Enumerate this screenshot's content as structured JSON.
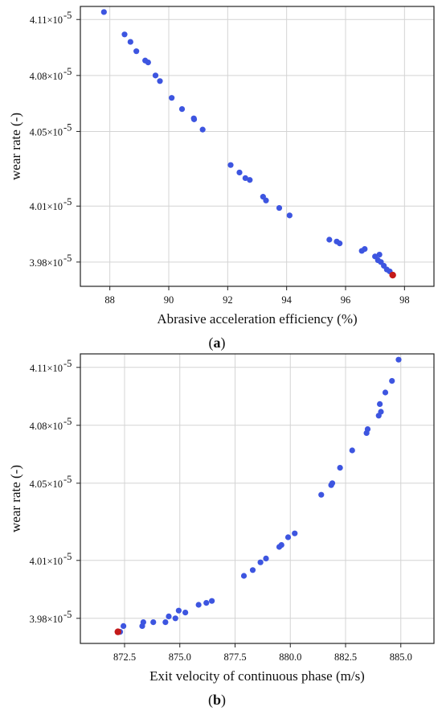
{
  "chart_data": [
    {
      "type": "scatter",
      "panel_label": "a",
      "xlabel": "Abrasive acceleration efficiency (%)",
      "ylabel": "wear rate (-)",
      "xlim": [
        87.0,
        99.0
      ],
      "ylim": [
        3.967e-05,
        4.117e-05
      ],
      "xticks": [
        88,
        90,
        92,
        94,
        96,
        98
      ],
      "xtick_labels": [
        "88",
        "90",
        "92",
        "94",
        "96",
        "98"
      ],
      "yticks": [
        3.98e-05,
        4.01e-05,
        4.05e-05,
        4.08e-05,
        4.11e-05
      ],
      "ytick_mantissas": [
        "3.98×10",
        "4.01×10",
        "4.05×10",
        "4.08×10",
        "4.11×10"
      ],
      "ytick_exponent": "-5",
      "grid": true,
      "point_color": "#3d55e0",
      "highlight_color": "#c41a1a",
      "points": [
        [
          87.8,
          4.114e-05
        ],
        [
          88.5,
          4.102e-05
        ],
        [
          88.7,
          4.098e-05
        ],
        [
          88.9,
          4.093e-05
        ],
        [
          89.2,
          4.088e-05
        ],
        [
          89.3,
          4.087e-05
        ],
        [
          89.55,
          4.08e-05
        ],
        [
          89.7,
          4.077e-05
        ],
        [
          90.1,
          4.068e-05
        ],
        [
          90.45,
          4.062e-05
        ],
        [
          90.85,
          4.057e-05
        ],
        [
          90.86,
          4.0565e-05
        ],
        [
          91.15,
          4.051e-05
        ],
        [
          92.1,
          4.032e-05
        ],
        [
          92.4,
          4.028e-05
        ],
        [
          92.6,
          4.025e-05
        ],
        [
          92.75,
          4.024e-05
        ],
        [
          93.2,
          4.015e-05
        ],
        [
          93.3,
          4.013e-05
        ],
        [
          93.75,
          4.009e-05
        ],
        [
          94.1,
          4.005e-05
        ],
        [
          95.45,
          3.992e-05
        ],
        [
          95.7,
          3.991e-05
        ],
        [
          95.8,
          3.99e-05
        ],
        [
          96.55,
          3.986e-05
        ],
        [
          96.65,
          3.987e-05
        ],
        [
          97.0,
          3.983e-05
        ],
        [
          97.15,
          3.984e-05
        ],
        [
          97.1,
          3.981e-05
        ],
        [
          97.2,
          3.98e-05
        ],
        [
          97.3,
          3.978e-05
        ],
        [
          97.4,
          3.976e-05
        ],
        [
          97.5,
          3.975e-05
        ]
      ],
      "highlight_point": [
        97.6,
        3.973e-05
      ]
    },
    {
      "type": "scatter",
      "panel_label": "b",
      "xlabel": "Exit velocity of continuous phase (m/s)",
      "ylabel": "wear rate (-)",
      "xlim": [
        870.5,
        886.5
      ],
      "ylim": [
        3.967e-05,
        4.117e-05
      ],
      "xticks": [
        872.5,
        875.0,
        877.5,
        880.0,
        882.5,
        885.0
      ],
      "xtick_labels": [
        "872.5",
        "875.0",
        "877.5",
        "880.0",
        "882.5",
        "885.0"
      ],
      "yticks": [
        3.98e-05,
        4.01e-05,
        4.05e-05,
        4.08e-05,
        4.11e-05
      ],
      "ytick_mantissas": [
        "3.98×10",
        "4.01×10",
        "4.05×10",
        "4.08×10",
        "4.11×10"
      ],
      "ytick_exponent": "-5",
      "grid": true,
      "point_color": "#3d55e0",
      "highlight_color": "#c41a1a",
      "points": [
        [
          872.3,
          3.973e-05
        ],
        [
          872.45,
          3.976e-05
        ],
        [
          873.3,
          3.976e-05
        ],
        [
          873.35,
          3.978e-05
        ],
        [
          873.8,
          3.978e-05
        ],
        [
          874.35,
          3.978e-05
        ],
        [
          874.5,
          3.981e-05
        ],
        [
          874.8,
          3.98e-05
        ],
        [
          874.95,
          3.984e-05
        ],
        [
          875.25,
          3.983e-05
        ],
        [
          875.85,
          3.987e-05
        ],
        [
          876.2,
          3.988e-05
        ],
        [
          876.45,
          3.989e-05
        ],
        [
          877.9,
          4.002e-05
        ],
        [
          878.3,
          4.005e-05
        ],
        [
          878.65,
          4.009e-05
        ],
        [
          878.9,
          4.011e-05
        ],
        [
          879.5,
          4.017e-05
        ],
        [
          879.6,
          4.018e-05
        ],
        [
          879.9,
          4.022e-05
        ],
        [
          880.2,
          4.024e-05
        ],
        [
          881.4,
          4.044e-05
        ],
        [
          881.85,
          4.049e-05
        ],
        [
          881.9,
          4.05e-05
        ],
        [
          882.25,
          4.058e-05
        ],
        [
          882.8,
          4.067e-05
        ],
        [
          883.45,
          4.076e-05
        ],
        [
          883.5,
          4.078e-05
        ],
        [
          884.0,
          4.085e-05
        ],
        [
          884.1,
          4.087e-05
        ],
        [
          884.05,
          4.091e-05
        ],
        [
          884.3,
          4.097e-05
        ],
        [
          884.6,
          4.103e-05
        ],
        [
          884.9,
          4.114e-05
        ]
      ],
      "highlight_point": [
        872.2,
        3.973e-05
      ]
    }
  ]
}
